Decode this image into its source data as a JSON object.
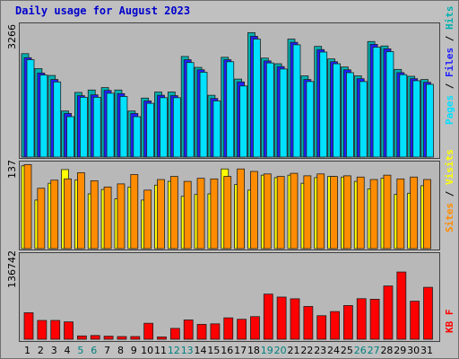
{
  "title": "Daily usage for August 2023",
  "colors": {
    "hits": "#00b0b0",
    "files": "#2020ff",
    "pages": "#00e0ff",
    "visits": "#ffff00",
    "sites": "#ff8c00",
    "kbytes": "#ff0000",
    "weekend_day": "#007f7f",
    "weekday": "#000000"
  },
  "legends": {
    "panel1": [
      {
        "text": "Pages",
        "color": "#00e0ff"
      },
      {
        "text": " / ",
        "color": "#000000"
      },
      {
        "text": "Files",
        "color": "#2020ff"
      },
      {
        "text": " / ",
        "color": "#000000"
      },
      {
        "text": "Hits",
        "color": "#00b0b0"
      }
    ],
    "panel2": [
      {
        "text": "Sites",
        "color": "#ff8c00"
      },
      {
        "text": " / ",
        "color": "#000000"
      },
      {
        "text": "Visits",
        "color": "#ffff00"
      }
    ],
    "panel3": [
      {
        "text": "KB F",
        "color": "#ff0000"
      }
    ]
  },
  "chart_data": {
    "type": "bar",
    "x": [
      "1",
      "2",
      "3",
      "4",
      "5",
      "6",
      "7",
      "8",
      "9",
      "10",
      "11",
      "12",
      "13",
      "14",
      "15",
      "16",
      "17",
      "18",
      "19",
      "20",
      "21",
      "22",
      "23",
      "24",
      "25",
      "26",
      "27",
      "28",
      "29",
      "30",
      "31"
    ],
    "weekend_days": [
      "5",
      "6",
      "12",
      "13",
      "19",
      "20",
      "26",
      "27"
    ],
    "panels": [
      {
        "ymax_label": "3266",
        "ylim": [
          0,
          3266
        ],
        "series": [
          {
            "name": "Hits",
            "values": [
              2560,
              2190,
              2020,
              1140,
              1600,
              1660,
              1720,
              1660,
              1140,
              1460,
              1610,
              1610,
              2490,
              2220,
              1530,
              2470,
              1930,
              3080,
              2450,
              2310,
              2920,
              2010,
              2740,
              2430,
              2230,
              2010,
              2860,
              2750,
              2170,
              2000,
              1920
            ]
          },
          {
            "name": "Files",
            "values": [
              2460,
              2080,
              1920,
              1080,
              1520,
              1540,
              1650,
              1570,
              1080,
              1390,
              1530,
              1520,
              2410,
              2160,
              1450,
              2410,
              1860,
              2990,
              2380,
              2240,
              2840,
              1920,
              2660,
              2360,
              2160,
              1940,
              2790,
              2680,
              2090,
              1940,
              1850
            ]
          },
          {
            "name": "Pages",
            "values": [
              2410,
              2030,
              1860,
              1000,
              1480,
              1480,
              1580,
              1500,
              1000,
              1330,
              1470,
              1470,
              2340,
              2100,
              1390,
              2360,
              1760,
              2920,
              2330,
              2180,
              2780,
              1870,
              2600,
              2310,
              2090,
              1870,
              2720,
              2610,
              2040,
              1890,
              1800
            ]
          }
        ]
      },
      {
        "ymax_label": "137",
        "ylim": [
          0,
          137
        ],
        "series": [
          {
            "name": "Sites",
            "values": [
              135,
              97,
              110,
              112,
              122,
              109,
              99,
              104,
              119,
              94,
              111,
              116,
              108,
              113,
              112,
              116,
              128,
              124,
              120,
              116,
              121,
              117,
              120,
              116,
              117,
              115,
              111,
              118,
              112,
              115,
              111
            ]
          },
          {
            "name": "Visits",
            "values": [
              133,
              78,
              105,
              127,
              110,
              88,
              95,
              80,
              99,
              78,
              102,
              108,
              84,
              87,
              88,
              128,
              103,
              94,
              118,
              114,
              118,
              105,
              114,
              116,
              115,
              108,
              96,
              113,
              87,
              89,
              101
            ]
          }
        ]
      },
      {
        "ymax_label": "136742",
        "ylim": [
          0,
          136742
        ],
        "series": [
          {
            "name": "KB F",
            "values": [
              43000,
              30500,
              30500,
              28200,
              5400,
              6100,
              5000,
              4400,
              4400,
              25900,
              3800,
              17600,
              31300,
              24200,
              25000,
              34700,
              32400,
              36700,
              73200,
              68400,
              65600,
              53200,
              38200,
              44900,
              54700,
              65800,
              64900,
              86400,
              109000,
              61700,
              84200
            ]
          }
        ]
      }
    ]
  }
}
